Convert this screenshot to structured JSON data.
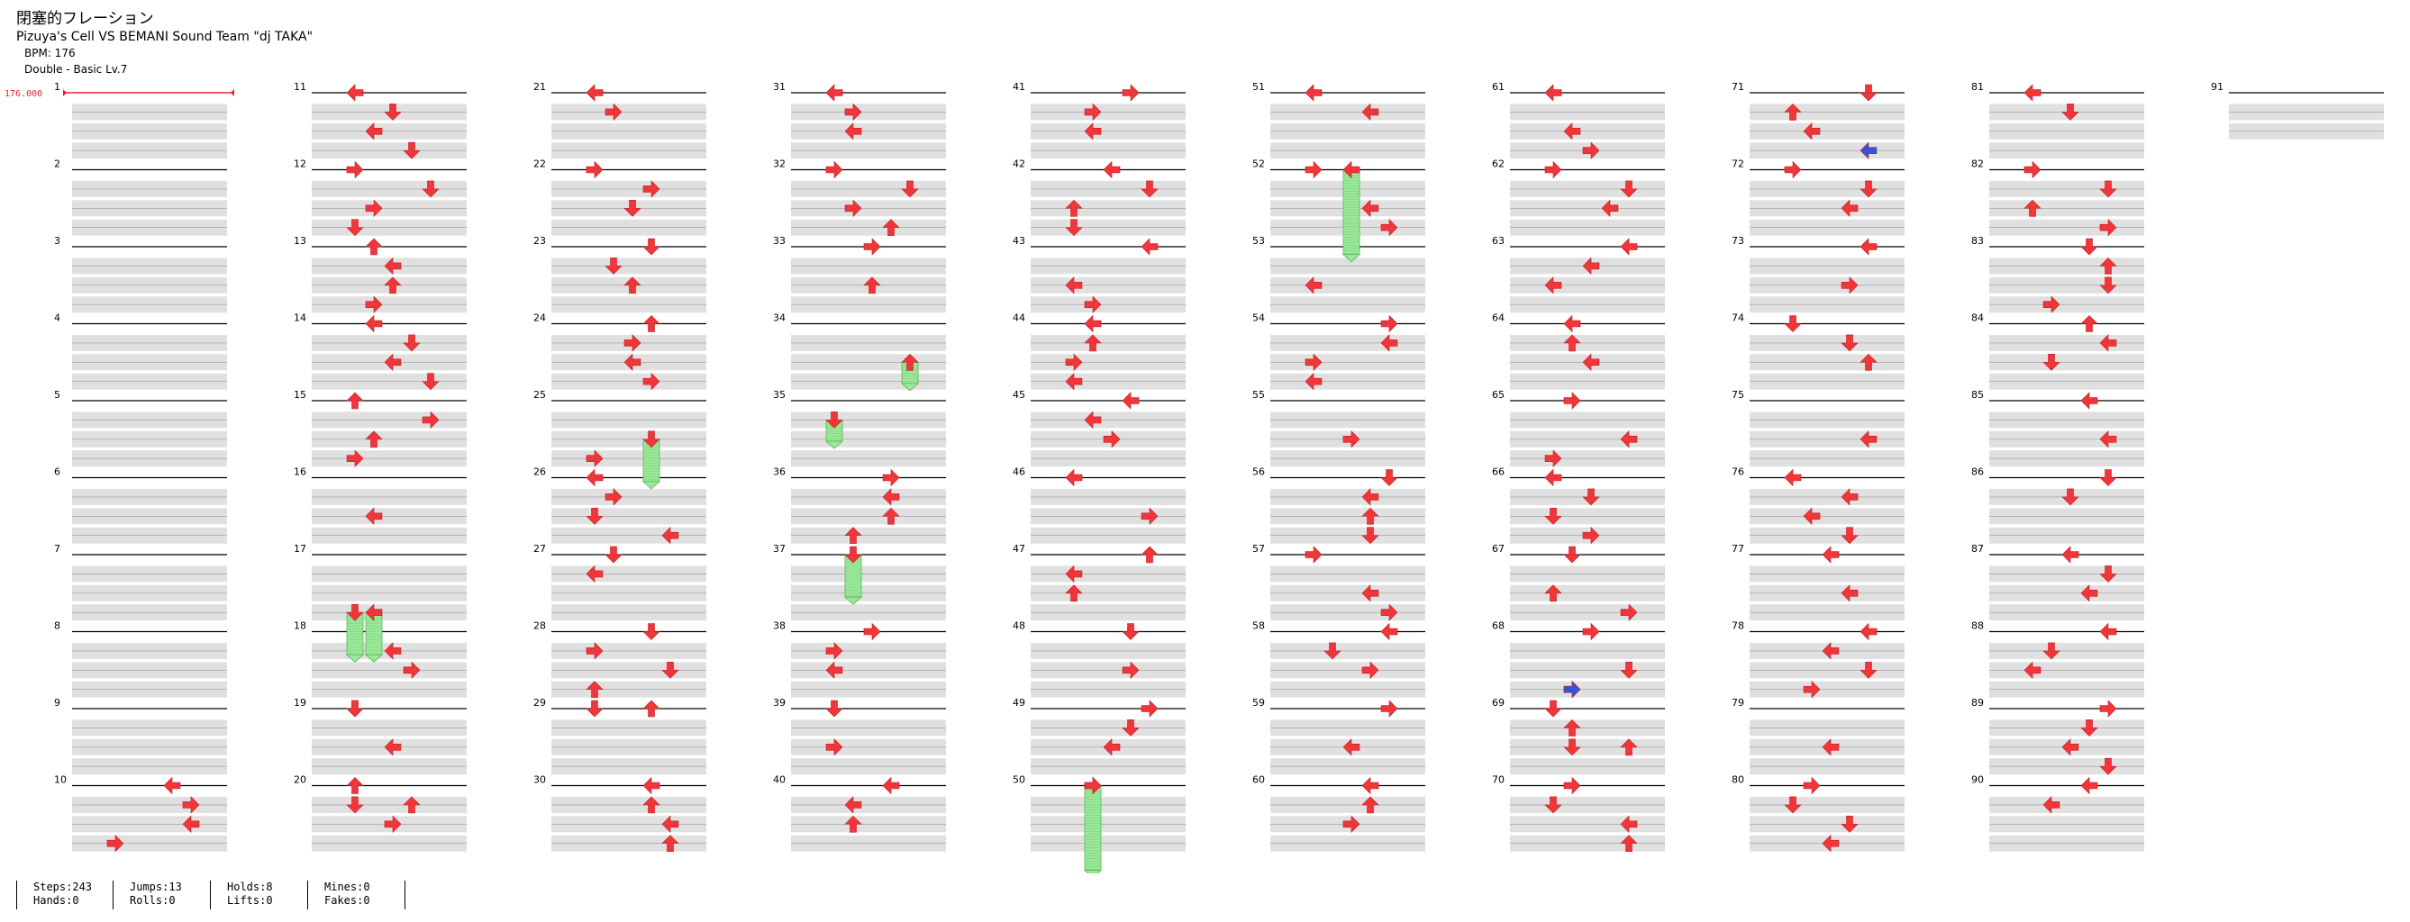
{
  "song": {
    "title": "閉塞的フレーション",
    "artist": "Pizuya's Cell VS BEMANI Sound Team \"dj TAKA\"",
    "bpm_label": "BPM: 176",
    "chart_label": "Double - Basic  Lv.7"
  },
  "bpm_marker": {
    "label": "176.000",
    "color": "#e8232b"
  },
  "colors": {
    "arrow": "#f0353b",
    "arrow_blue": "#3554d8",
    "hold": "#9be89a",
    "row_fill": "#e0e0e0"
  },
  "measures": [
    "1",
    "2",
    "3",
    "4",
    "5",
    "6",
    "7",
    "8",
    "9",
    "10",
    "11",
    "12",
    "13",
    "14",
    "15",
    "16",
    "17",
    "18",
    "19",
    "20",
    "21",
    "22",
    "23",
    "24",
    "25",
    "26",
    "27",
    "28",
    "29",
    "30",
    "31",
    "32",
    "33",
    "34",
    "35",
    "36",
    "37",
    "38",
    "39",
    "40",
    "41",
    "42",
    "43",
    "44",
    "45",
    "46",
    "47",
    "48",
    "49",
    "50",
    "51",
    "52",
    "53",
    "54",
    "55",
    "56",
    "57",
    "58",
    "59",
    "60",
    "61",
    "62",
    "63",
    "64",
    "65",
    "66",
    "67",
    "68",
    "69",
    "70",
    "71",
    "72",
    "73",
    "74",
    "75",
    "76",
    "77",
    "78",
    "79",
    "80",
    "81",
    "82",
    "83",
    "84",
    "85",
    "86",
    "87",
    "88",
    "89",
    "90",
    "91"
  ],
  "stats": [
    {
      "line1": "Steps:243",
      "line2": "Hands:0"
    },
    {
      "line1": "Jumps:13",
      "line2": "Rolls:0"
    },
    {
      "line1": "Holds:8",
      "line2": "Lifts:0"
    },
    {
      "line1": "Mines:0",
      "line2": "Fakes:0"
    }
  ],
  "notes": [
    [
      10,
      0,
      "left"
    ],
    [
      10,
      1,
      "right"
    ],
    [
      10,
      2,
      "left"
    ],
    [
      10,
      3,
      "right"
    ],
    [
      11,
      0,
      "left"
    ],
    [
      11,
      1,
      "down"
    ],
    [
      11,
      2,
      "left"
    ],
    [
      11,
      3,
      "down"
    ],
    [
      12,
      0,
      "right"
    ],
    [
      12,
      1,
      "down"
    ],
    [
      12,
      2,
      "right"
    ],
    [
      12,
      3,
      "down"
    ],
    [
      13,
      0,
      "up"
    ],
    [
      13,
      1,
      "left"
    ],
    [
      13,
      2,
      "up"
    ],
    [
      13,
      3,
      "right"
    ],
    [
      14,
      0,
      "left"
    ],
    [
      14,
      1,
      "down"
    ],
    [
      14,
      2,
      "left"
    ],
    [
      14,
      3,
      "down"
    ],
    [
      15,
      0,
      "up"
    ],
    [
      15,
      1,
      "right"
    ],
    [
      15,
      2,
      "up"
    ],
    [
      15,
      3,
      "right"
    ],
    [
      16,
      2,
      "left"
    ],
    [
      18,
      1,
      "left"
    ],
    [
      18,
      2,
      "right"
    ],
    [
      19,
      0,
      "down"
    ],
    [
      19,
      0,
      "down"
    ],
    [
      19,
      2,
      "left"
    ],
    [
      20,
      0,
      "up"
    ],
    [
      20,
      1,
      "down"
    ],
    [
      20,
      1,
      "up"
    ],
    [
      20,
      2,
      "right"
    ],
    [
      21,
      0,
      "left"
    ],
    [
      21,
      1,
      "right"
    ],
    [
      22,
      0,
      "right"
    ],
    [
      22,
      1,
      "right"
    ],
    [
      22,
      2,
      "down"
    ],
    [
      23,
      0,
      "down"
    ],
    [
      23,
      1,
      "down"
    ],
    [
      23,
      2,
      "up"
    ],
    [
      24,
      0,
      "up"
    ],
    [
      24,
      1,
      "right"
    ],
    [
      24,
      2,
      "left"
    ],
    [
      24,
      3,
      "right"
    ],
    [
      25,
      3,
      "right"
    ],
    [
      26,
      0,
      "left"
    ],
    [
      26,
      1,
      "right"
    ],
    [
      26,
      2,
      "down"
    ],
    [
      26,
      3,
      "left"
    ],
    [
      27,
      0,
      "down"
    ],
    [
      27,
      1,
      "left"
    ],
    [
      28,
      0,
      "down"
    ],
    [
      28,
      1,
      "right"
    ],
    [
      28,
      2,
      "down"
    ],
    [
      28,
      3,
      "up"
    ],
    [
      29,
      0,
      "down"
    ],
    [
      29,
      0,
      "up"
    ],
    [
      30,
      0,
      "left"
    ],
    [
      30,
      1,
      "up"
    ],
    [
      30,
      2,
      "left"
    ],
    [
      30,
      3,
      "up"
    ],
    [
      31,
      0,
      "left"
    ],
    [
      31,
      1,
      "right"
    ],
    [
      31,
      2,
      "left"
    ],
    [
      32,
      0,
      "right"
    ],
    [
      32,
      1,
      "down"
    ],
    [
      32,
      2,
      "right"
    ],
    [
      32,
      3,
      "up"
    ],
    [
      33,
      0,
      "right"
    ],
    [
      33,
      2,
      "up"
    ],
    [
      36,
      0,
      "right"
    ],
    [
      36,
      1,
      "left"
    ],
    [
      36,
      2,
      "up"
    ],
    [
      36,
      3,
      "up"
    ],
    [
      38,
      0,
      "right"
    ],
    [
      38,
      1,
      "right"
    ],
    [
      38,
      2,
      "left"
    ],
    [
      39,
      0,
      "down"
    ],
    [
      39,
      2,
      "right"
    ],
    [
      40,
      0,
      "left"
    ],
    [
      40,
      1,
      "left"
    ],
    [
      40,
      2,
      "up"
    ],
    [
      41,
      0,
      "right"
    ],
    [
      41,
      1,
      "right"
    ],
    [
      41,
      2,
      "left"
    ],
    [
      42,
      0,
      "left"
    ],
    [
      42,
      1,
      "down"
    ],
    [
      42,
      2,
      "up"
    ],
    [
      42,
      3,
      "down"
    ],
    [
      43,
      0,
      "left"
    ],
    [
      43,
      2,
      "left"
    ],
    [
      43,
      3,
      "right"
    ],
    [
      44,
      0,
      "left"
    ],
    [
      44,
      1,
      "up"
    ],
    [
      44,
      2,
      "right"
    ],
    [
      44,
      3,
      "left"
    ],
    [
      45,
      0,
      "left"
    ],
    [
      45,
      1,
      "left"
    ],
    [
      45,
      2,
      "right"
    ],
    [
      46,
      0,
      "left"
    ],
    [
      46,
      2,
      "right"
    ],
    [
      47,
      0,
      "up"
    ],
    [
      47,
      1,
      "left"
    ],
    [
      47,
      2,
      "up"
    ],
    [
      48,
      0,
      "down"
    ],
    [
      48,
      2,
      "right"
    ],
    [
      49,
      0,
      "right"
    ],
    [
      49,
      1,
      "down"
    ],
    [
      49,
      2,
      "left"
    ],
    [
      50,
      0,
      "right"
    ],
    [
      51,
      0,
      "left"
    ],
    [
      51,
      1,
      "left"
    ],
    [
      52,
      0,
      "right"
    ],
    [
      52,
      2,
      "left"
    ],
    [
      52,
      3,
      "right"
    ],
    [
      53,
      2,
      "left"
    ],
    [
      54,
      0,
      "right"
    ],
    [
      54,
      1,
      "left"
    ],
    [
      54,
      2,
      "right"
    ],
    [
      54,
      3,
      "left"
    ],
    [
      55,
      2,
      "right"
    ],
    [
      56,
      0,
      "down"
    ],
    [
      56,
      1,
      "left"
    ],
    [
      56,
      2,
      "up"
    ],
    [
      56,
      3,
      "down"
    ],
    [
      57,
      0,
      "right"
    ],
    [
      57,
      2,
      "left"
    ],
    [
      57,
      3,
      "right"
    ],
    [
      58,
      0,
      "left"
    ],
    [
      58,
      1,
      "down"
    ],
    [
      58,
      2,
      "right"
    ],
    [
      59,
      0,
      "right"
    ],
    [
      59,
      2,
      "left"
    ],
    [
      60,
      0,
      "left"
    ],
    [
      60,
      1,
      "up"
    ],
    [
      60,
      2,
      "right"
    ],
    [
      61,
      0,
      "left"
    ],
    [
      61,
      2,
      "left"
    ],
    [
      61,
      3,
      "right"
    ],
    [
      62,
      0,
      "right"
    ],
    [
      62,
      1,
      "down"
    ],
    [
      62,
      2,
      "left"
    ],
    [
      63,
      0,
      "left"
    ],
    [
      63,
      1,
      "left"
    ],
    [
      63,
      2,
      "left"
    ],
    [
      64,
      0,
      "left"
    ],
    [
      64,
      1,
      "up"
    ],
    [
      64,
      2,
      "left"
    ],
    [
      65,
      0,
      "right"
    ],
    [
      65,
      2,
      "left"
    ],
    [
      65,
      3,
      "right"
    ],
    [
      66,
      0,
      "left"
    ],
    [
      66,
      1,
      "down"
    ],
    [
      66,
      2,
      "down"
    ],
    [
      66,
      3,
      "right"
    ],
    [
      67,
      0,
      "down"
    ],
    [
      67,
      2,
      "up"
    ],
    [
      67,
      3,
      "right"
    ],
    [
      68,
      0,
      "right"
    ],
    [
      68,
      2,
      "down"
    ],
    [
      68,
      3,
      "right"
    ],
    [
      69,
      0,
      "down"
    ],
    [
      69,
      1,
      "up"
    ],
    [
      69,
      2,
      "down"
    ],
    [
      69,
      2,
      "up"
    ],
    [
      70,
      0,
      "right"
    ],
    [
      70,
      1,
      "down"
    ],
    [
      70,
      2,
      "left"
    ],
    [
      70,
      3,
      "up"
    ],
    [
      71,
      0,
      "down"
    ],
    [
      71,
      1,
      "up"
    ],
    [
      71,
      2,
      "left"
    ],
    [
      72,
      0,
      "right"
    ],
    [
      72,
      1,
      "down"
    ],
    [
      72,
      2,
      "left"
    ],
    [
      73,
      0,
      "left"
    ],
    [
      73,
      2,
      "right"
    ],
    [
      74,
      0,
      "down"
    ],
    [
      74,
      1,
      "down"
    ],
    [
      74,
      2,
      "up"
    ],
    [
      75,
      2,
      "left"
    ],
    [
      76,
      0,
      "left"
    ],
    [
      76,
      1,
      "left"
    ],
    [
      76,
      2,
      "left"
    ],
    [
      76,
      3,
      "down"
    ],
    [
      77,
      0,
      "left"
    ],
    [
      77,
      2,
      "left"
    ],
    [
      78,
      0,
      "left"
    ],
    [
      78,
      1,
      "left"
    ],
    [
      78,
      2,
      "down"
    ],
    [
      78,
      3,
      "right"
    ],
    [
      79,
      2,
      "left"
    ],
    [
      80,
      0,
      "right"
    ],
    [
      80,
      1,
      "down"
    ],
    [
      80,
      2,
      "down"
    ],
    [
      80,
      3,
      "left"
    ],
    [
      81,
      0,
      "left"
    ],
    [
      81,
      1,
      "down"
    ],
    [
      82,
      0,
      "right"
    ],
    [
      82,
      1,
      "down"
    ],
    [
      82,
      2,
      "up"
    ],
    [
      82,
      3,
      "right"
    ],
    [
      83,
      0,
      "down"
    ],
    [
      83,
      1,
      "up"
    ],
    [
      83,
      2,
      "down"
    ],
    [
      83,
      3,
      "right"
    ],
    [
      84,
      0,
      "up"
    ],
    [
      84,
      1,
      "left"
    ],
    [
      84,
      2,
      "down"
    ],
    [
      85,
      0,
      "left"
    ],
    [
      85,
      2,
      "left"
    ],
    [
      86,
      0,
      "down"
    ],
    [
      86,
      1,
      "down"
    ],
    [
      87,
      0,
      "left"
    ],
    [
      87,
      1,
      "down"
    ],
    [
      87,
      2,
      "left"
    ],
    [
      88,
      0,
      "left"
    ],
    [
      88,
      1,
      "down"
    ],
    [
      88,
      2,
      "left"
    ],
    [
      89,
      0,
      "right"
    ],
    [
      89,
      1,
      "down"
    ],
    [
      89,
      2,
      "left"
    ],
    [
      89,
      3,
      "down"
    ],
    [
      90,
      0,
      "left"
    ],
    [
      90,
      1,
      "left"
    ]
  ],
  "holds": [
    [
      17,
      3,
      2,
      "down"
    ],
    [
      17,
      3,
      2,
      "left"
    ],
    [
      25,
      2,
      2,
      "down"
    ],
    [
      34,
      2,
      1,
      "up"
    ],
    [
      35,
      1,
      1,
      "down"
    ],
    [
      37,
      0,
      2,
      "down"
    ],
    [
      50,
      0,
      4,
      "right"
    ],
    [
      52,
      0,
      4,
      "left"
    ]
  ],
  "blue_notes": [
    [
      71,
      3,
      "left"
    ],
    [
      68,
      3,
      "right"
    ]
  ]
}
